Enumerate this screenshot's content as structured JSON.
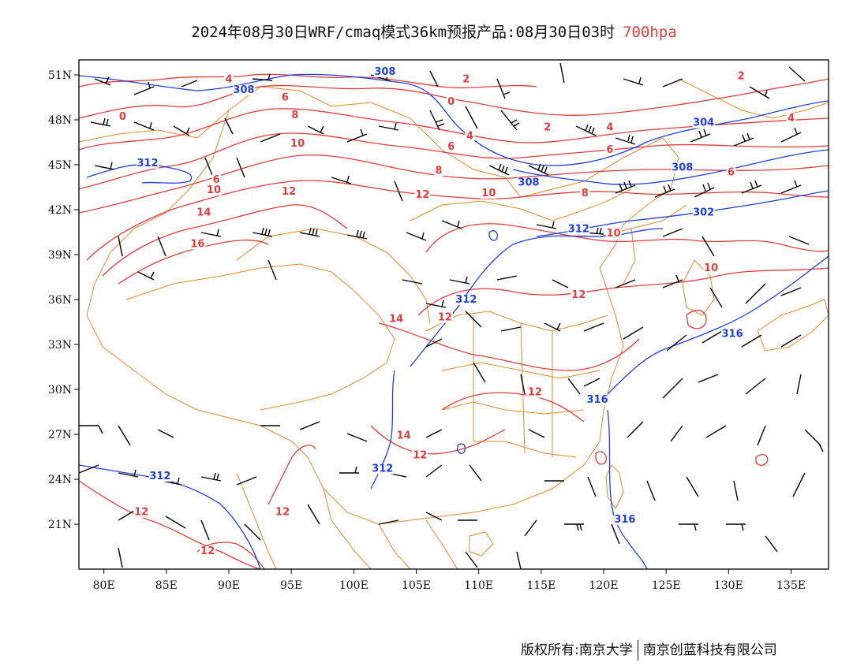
{
  "header": {
    "title": "2024年08月30日WRF/cmaq模式36km预报产品:08月30日03时",
    "level": "700hpa",
    "level_color": "#e03c3c"
  },
  "map": {
    "lon_range": [
      78,
      138
    ],
    "lat_range": [
      18,
      52
    ],
    "x_ticks": [
      "80E",
      "85E",
      "90E",
      "95E",
      "100E",
      "105E",
      "110E",
      "115E",
      "120E",
      "125E",
      "130E",
      "135E"
    ],
    "y_ticks": [
      "51N",
      "48N",
      "45N",
      "42N",
      "39N",
      "36N",
      "33N",
      "30N",
      "27N",
      "24N",
      "21N"
    ],
    "temperature_color": "#e03c3c",
    "height_color": "#1f3fe0",
    "border_color": "#e08a2a",
    "barb_color": "#000000",
    "temperature_labels": [
      {
        "text": "4",
        "lon": 90.0,
        "lat": 50.5
      },
      {
        "text": "2",
        "lon": 109.0,
        "lat": 50.5
      },
      {
        "text": "2",
        "lon": 131.0,
        "lat": 50.7
      },
      {
        "text": "0",
        "lon": 81.5,
        "lat": 48.0
      },
      {
        "text": "0",
        "lon": 107.8,
        "lat": 49.0
      },
      {
        "text": "6",
        "lon": 94.5,
        "lat": 49.3
      },
      {
        "text": "8",
        "lon": 95.3,
        "lat": 48.1
      },
      {
        "text": "2",
        "lon": 115.5,
        "lat": 47.3
      },
      {
        "text": "4",
        "lon": 120.5,
        "lat": 47.3
      },
      {
        "text": "4",
        "lon": 135.0,
        "lat": 47.9
      },
      {
        "text": "4",
        "lon": 109.3,
        "lat": 46.7
      },
      {
        "text": "10",
        "lon": 95.5,
        "lat": 46.2
      },
      {
        "text": "6",
        "lon": 107.8,
        "lat": 46.0
      },
      {
        "text": "6",
        "lon": 120.5,
        "lat": 45.8
      },
      {
        "text": "8",
        "lon": 106.8,
        "lat": 44.4
      },
      {
        "text": "6",
        "lon": 130.2,
        "lat": 44.3
      },
      {
        "text": "6",
        "lon": 89.0,
        "lat": 43.8
      },
      {
        "text": "10",
        "lon": 88.8,
        "lat": 43.1
      },
      {
        "text": "12",
        "lon": 94.8,
        "lat": 43.0
      },
      {
        "text": "12",
        "lon": 105.5,
        "lat": 42.8
      },
      {
        "text": "10",
        "lon": 110.8,
        "lat": 42.9
      },
      {
        "text": "8",
        "lon": 118.5,
        "lat": 42.9
      },
      {
        "text": "14",
        "lon": 88.0,
        "lat": 41.6
      },
      {
        "text": "10",
        "lon": 120.8,
        "lat": 40.2
      },
      {
        "text": "16",
        "lon": 87.5,
        "lat": 39.5
      },
      {
        "text": "10",
        "lon": 128.6,
        "lat": 37.9
      },
      {
        "text": "12",
        "lon": 118.0,
        "lat": 36.1
      },
      {
        "text": "14",
        "lon": 103.4,
        "lat": 34.5
      },
      {
        "text": "12",
        "lon": 107.3,
        "lat": 34.6
      },
      {
        "text": "12",
        "lon": 114.5,
        "lat": 29.6
      },
      {
        "text": "14",
        "lon": 104.0,
        "lat": 26.7
      },
      {
        "text": "12",
        "lon": 105.3,
        "lat": 25.4
      },
      {
        "text": "12",
        "lon": 83.0,
        "lat": 21.6
      },
      {
        "text": "12",
        "lon": 94.3,
        "lat": 21.6
      },
      {
        "text": "12",
        "lon": 88.3,
        "lat": 19.0
      }
    ],
    "height_labels": [
      {
        "text": "308",
        "lon": 102.5,
        "lat": 51.0
      },
      {
        "text": "308",
        "lon": 91.2,
        "lat": 49.8
      },
      {
        "text": "304",
        "lon": 128.0,
        "lat": 47.6
      },
      {
        "text": "312",
        "lon": 83.5,
        "lat": 44.9
      },
      {
        "text": "308",
        "lon": 126.3,
        "lat": 44.6
      },
      {
        "text": "308",
        "lon": 114.0,
        "lat": 43.6
      },
      {
        "text": "302",
        "lon": 128.0,
        "lat": 41.6
      },
      {
        "text": "312",
        "lon": 118.0,
        "lat": 40.5
      },
      {
        "text": "312",
        "lon": 109.0,
        "lat": 35.8
      },
      {
        "text": "316",
        "lon": 130.3,
        "lat": 33.5
      },
      {
        "text": "316",
        "lon": 119.5,
        "lat": 29.1
      },
      {
        "text": "312",
        "lon": 84.5,
        "lat": 24.0
      },
      {
        "text": "312",
        "lon": 102.3,
        "lat": 24.5
      },
      {
        "text": "316",
        "lon": 121.7,
        "lat": 21.1
      }
    ]
  },
  "footer": {
    "left": "版权所有:南京大学",
    "right": "南京创蓝科技有限公司"
  }
}
